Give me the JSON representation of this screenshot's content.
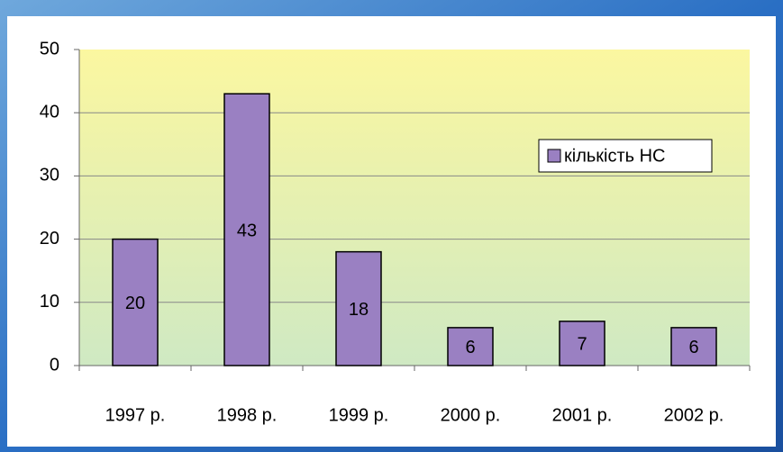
{
  "chart_data": {
    "type": "bar",
    "categories": [
      "1997 р.",
      "1998 р.",
      "1999 р.",
      "2000 р.",
      "2001 р.",
      "2002 р."
    ],
    "series": [
      {
        "name": "кількість НС",
        "color": "#9a80c2",
        "values": [
          20,
          43,
          18,
          6,
          7,
          6
        ]
      }
    ],
    "ylim": [
      0,
      50
    ],
    "yticks": [
      0,
      10,
      20,
      30,
      40,
      50
    ],
    "grid": true,
    "legend": "upper right",
    "data_labels": true
  }
}
